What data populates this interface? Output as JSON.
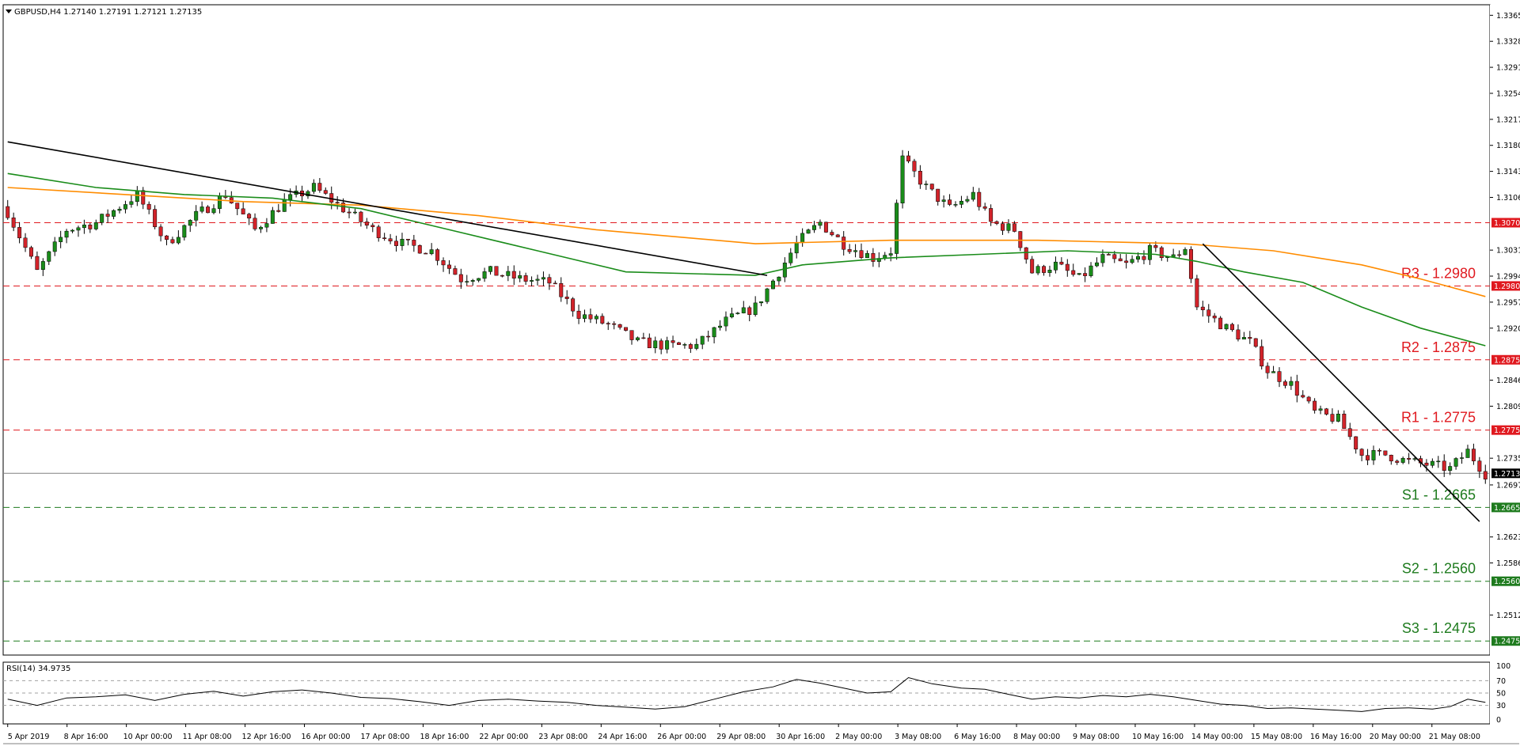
{
  "header": {
    "title": "GBPUSD,H4  1.27140 1.27191 1.27121 1.27135"
  },
  "colors": {
    "background": "#ffffff",
    "bull": "#1a8c1a",
    "bear": "#d2232a",
    "resistance": "#e0191f",
    "support": "#1e7b1e",
    "ma_fast": "#1a8c1a",
    "ma_slow": "#ff8c00",
    "trendline": "#000000",
    "rsi": "#000000"
  },
  "chart_data": {
    "type": "candlestick",
    "title": "GBPUSD,H4  1.27140 1.27191 1.27121 1.27135",
    "ylim": [
      1.2455,
      1.338
    ],
    "price_ticks": [
      "1.33650",
      "1.33280",
      "1.32910",
      "1.32540",
      "1.32170",
      "1.31800",
      "1.31430",
      "1.31060",
      "1.30310",
      "1.29940",
      "1.29570",
      "1.29200",
      "1.28460",
      "1.28090",
      "1.27350",
      "1.26970",
      "1.26230",
      "1.25860",
      "1.25120"
    ],
    "time_labels": [
      "5 Apr 2019",
      "8 Apr 16:00",
      "10 Apr 00:00",
      "11 Apr 08:00",
      "12 Apr 16:00",
      "16 Apr 00:00",
      "17 Apr 08:00",
      "18 Apr 16:00",
      "22 Apr 00:00",
      "23 Apr 08:00",
      "24 Apr 16:00",
      "26 Apr 00:00",
      "29 Apr 08:00",
      "30 Apr 16:00",
      "2 May 00:00",
      "3 May 08:00",
      "6 May 16:00",
      "8 May 00:00",
      "9 May 08:00",
      "10 May 16:00",
      "14 May 00:00",
      "15 May 08:00",
      "16 May 16:00",
      "20 May 00:00",
      "21 May 08:00"
    ],
    "current_price": {
      "value": 1.27135,
      "tag": "1.27135"
    },
    "levels": [
      {
        "name": "R3 - 1.2980",
        "value": 1.298,
        "tag": "1.29800",
        "kind": "resistance"
      },
      {
        "name": "",
        "value": 1.307,
        "tag": "1.30700",
        "kind": "resistance"
      },
      {
        "name": "R2 - 1.2875",
        "value": 1.2875,
        "tag": "1.28750",
        "kind": "resistance"
      },
      {
        "name": "R1 - 1.2775",
        "value": 1.2775,
        "tag": "1.27750",
        "kind": "resistance"
      },
      {
        "name": "S1 - 1.2665",
        "value": 1.2665,
        "tag": "1.26650",
        "kind": "support"
      },
      {
        "name": "S2 - 1.2560",
        "value": 1.256,
        "tag": "1.25600",
        "kind": "support"
      },
      {
        "name": "S3 - 1.2475",
        "value": 1.2475,
        "tag": "1.24750",
        "kind": "support"
      }
    ],
    "close_path": [
      [
        0,
        1.3085
      ],
      [
        5,
        1.3
      ],
      [
        10,
        1.306
      ],
      [
        15,
        1.307
      ],
      [
        22,
        1.311
      ],
      [
        27,
        1.304
      ],
      [
        32,
        1.308
      ],
      [
        37,
        1.311
      ],
      [
        42,
        1.306
      ],
      [
        47,
        1.31
      ],
      [
        52,
        1.312
      ],
      [
        57,
        1.309
      ],
      [
        62,
        1.306
      ],
      [
        67,
        1.304
      ],
      [
        72,
        1.303
      ],
      [
        77,
        1.299
      ],
      [
        82,
        1.3
      ],
      [
        87,
        1.299
      ],
      [
        92,
        1.2985
      ],
      [
        97,
        1.294
      ],
      [
        102,
        1.2925
      ],
      [
        107,
        1.29
      ],
      [
        112,
        1.2895
      ],
      [
        117,
        1.2895
      ],
      [
        122,
        1.293
      ],
      [
        127,
        1.295
      ],
      [
        131,
        1.3
      ],
      [
        134,
        1.304
      ],
      [
        138,
        1.307
      ],
      [
        142,
        1.304
      ],
      [
        147,
        1.302
      ],
      [
        150,
        1.303
      ],
      [
        152,
        1.316
      ],
      [
        156,
        1.312
      ],
      [
        160,
        1.309
      ],
      [
        164,
        1.311
      ],
      [
        167,
        1.307
      ],
      [
        171,
        1.306
      ],
      [
        174,
        1.3
      ],
      [
        178,
        1.301
      ],
      [
        182,
        1.299
      ],
      [
        186,
        1.302
      ],
      [
        190,
        1.301
      ],
      [
        194,
        1.303
      ],
      [
        198,
        1.302
      ],
      [
        200,
        1.3035
      ],
      [
        202,
        1.295
      ],
      [
        207,
        1.292
      ],
      [
        211,
        1.29
      ],
      [
        214,
        1.286
      ],
      [
        218,
        1.284
      ],
      [
        222,
        1.28
      ],
      [
        226,
        1.279
      ],
      [
        230,
        1.274
      ],
      [
        234,
        1.274
      ],
      [
        238,
        1.273
      ],
      [
        242,
        1.2725
      ],
      [
        245,
        1.272
      ],
      [
        248,
        1.2745
      ],
      [
        251,
        1.2713
      ]
    ],
    "ma_fast": [
      [
        0,
        1.314
      ],
      [
        15,
        1.312
      ],
      [
        30,
        1.311
      ],
      [
        45,
        1.3105
      ],
      [
        60,
        1.309
      ],
      [
        75,
        1.306
      ],
      [
        90,
        1.303
      ],
      [
        105,
        1.3
      ],
      [
        127,
        1.2995
      ],
      [
        135,
        1.301
      ],
      [
        150,
        1.302
      ],
      [
        165,
        1.3025
      ],
      [
        180,
        1.303
      ],
      [
        195,
        1.3025
      ],
      [
        202,
        1.3015
      ],
      [
        210,
        1.3
      ],
      [
        220,
        1.2985
      ],
      [
        230,
        1.295
      ],
      [
        240,
        1.292
      ],
      [
        251,
        1.2895
      ]
    ],
    "ma_slow": [
      [
        0,
        1.312
      ],
      [
        20,
        1.311
      ],
      [
        40,
        1.31
      ],
      [
        60,
        1.3095
      ],
      [
        80,
        1.308
      ],
      [
        100,
        1.306
      ],
      [
        127,
        1.304
      ],
      [
        150,
        1.3045
      ],
      [
        175,
        1.3045
      ],
      [
        200,
        1.304
      ],
      [
        215,
        1.303
      ],
      [
        230,
        1.301
      ],
      [
        240,
        1.299
      ],
      [
        251,
        1.2965
      ]
    ],
    "trendlines": [
      {
        "from": [
          0,
          1.3185
        ],
        "to": [
          129,
          1.2995
        ]
      },
      {
        "from": [
          203,
          1.304
        ],
        "to": [
          250,
          1.2645
        ]
      }
    ],
    "rsi": {
      "label": "RSI(14) 34.9735",
      "value": 34.9735,
      "ticks": [
        "70",
        "50",
        "30"
      ],
      "ticks_extra": [
        "100",
        "0"
      ],
      "series": [
        [
          0,
          40
        ],
        [
          5,
          30
        ],
        [
          10,
          42
        ],
        [
          15,
          44
        ],
        [
          20,
          47
        ],
        [
          25,
          38
        ],
        [
          30,
          48
        ],
        [
          35,
          53
        ],
        [
          40,
          45
        ],
        [
          45,
          52
        ],
        [
          50,
          55
        ],
        [
          55,
          50
        ],
        [
          60,
          43
        ],
        [
          65,
          41
        ],
        [
          70,
          36
        ],
        [
          75,
          30
        ],
        [
          80,
          38
        ],
        [
          85,
          40
        ],
        [
          90,
          37
        ],
        [
          95,
          35
        ],
        [
          100,
          30
        ],
        [
          105,
          27
        ],
        [
          110,
          24
        ],
        [
          115,
          28
        ],
        [
          120,
          40
        ],
        [
          125,
          52
        ],
        [
          130,
          60
        ],
        [
          134,
          72
        ],
        [
          138,
          66
        ],
        [
          142,
          58
        ],
        [
          146,
          50
        ],
        [
          150,
          52
        ],
        [
          153,
          75
        ],
        [
          157,
          65
        ],
        [
          162,
          58
        ],
        [
          166,
          56
        ],
        [
          170,
          48
        ],
        [
          174,
          40
        ],
        [
          178,
          44
        ],
        [
          182,
          42
        ],
        [
          186,
          46
        ],
        [
          190,
          44
        ],
        [
          194,
          48
        ],
        [
          198,
          44
        ],
        [
          202,
          38
        ],
        [
          206,
          32
        ],
        [
          210,
          30
        ],
        [
          214,
          25
        ],
        [
          218,
          26
        ],
        [
          222,
          24
        ],
        [
          226,
          22
        ],
        [
          230,
          20
        ],
        [
          234,
          25
        ],
        [
          238,
          26
        ],
        [
          242,
          24
        ],
        [
          245,
          28
        ],
        [
          248,
          40
        ],
        [
          251,
          35
        ]
      ]
    }
  }
}
